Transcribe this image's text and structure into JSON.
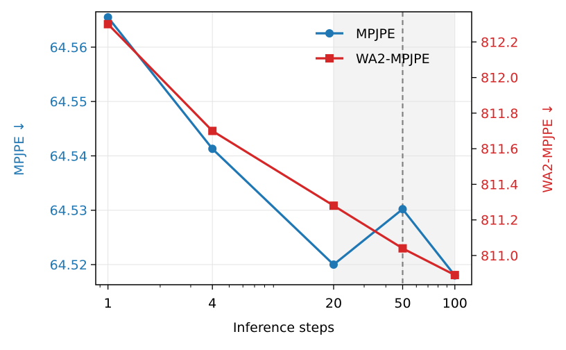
{
  "chart_data": {
    "type": "line",
    "xlabel": "Inference steps",
    "x_scale": "log",
    "x_ticks": [
      1,
      4,
      20,
      50,
      100
    ],
    "x_tick_labels": [
      "1",
      "4",
      "20",
      "50",
      "100"
    ],
    "xlim": [
      0.85,
      125
    ],
    "grid": true,
    "legend_position": "top-right",
    "shaded_region": [
      20,
      100
    ],
    "reference_line_x": 50,
    "left_axis": {
      "label": "MPJPE ↓",
      "color": "#1f77b4",
      "ylim": [
        64.5163,
        64.5665
      ],
      "ticks": [
        64.52,
        64.53,
        64.54,
        64.55,
        64.56
      ],
      "tick_labels": [
        "64.52",
        "64.53",
        "64.54",
        "64.55",
        "64.56"
      ]
    },
    "right_axis": {
      "label": "WA2-MPJPE ↓",
      "color": "#d62728",
      "ylim": [
        810.8357,
        812.3694
      ],
      "ticks": [
        811.0,
        811.2,
        811.4,
        811.6,
        811.8,
        812.0,
        812.2
      ],
      "tick_labels": [
        "811.0",
        "811.2",
        "811.4",
        "811.6",
        "811.8",
        "812.0",
        "812.2"
      ]
    },
    "series": [
      {
        "name": "MPJPE",
        "axis": "left",
        "color": "#1f77b4",
        "marker": "circle",
        "x": [
          1,
          4,
          20,
          50,
          100
        ],
        "values": [
          64.5655,
          64.5413,
          64.52,
          64.5302,
          64.518
        ]
      },
      {
        "name": "WA2-MPJPE",
        "axis": "right",
        "color": "#d62728",
        "marker": "square",
        "x": [
          1,
          4,
          20,
          50,
          100
        ],
        "values": [
          812.3,
          811.7,
          811.28,
          811.04,
          810.89
        ]
      }
    ]
  }
}
